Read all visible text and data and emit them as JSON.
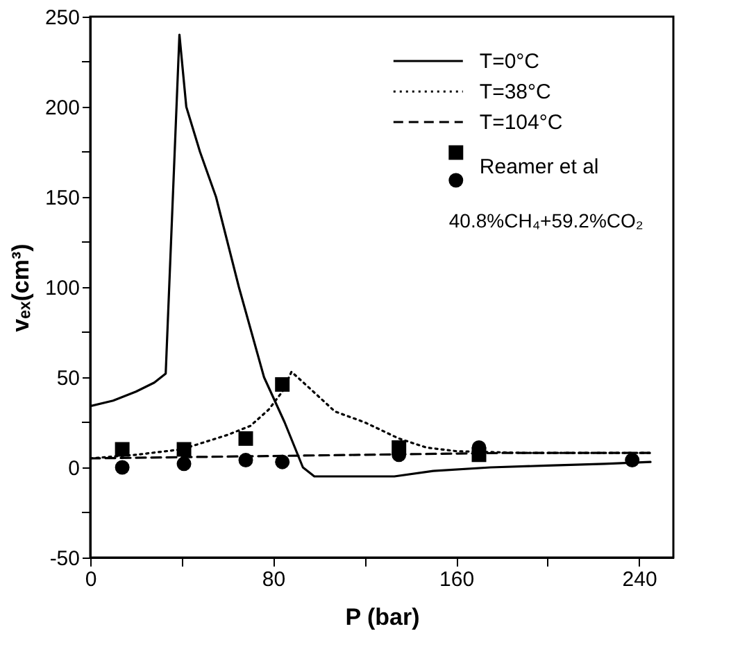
{
  "chart_data": {
    "type": "line",
    "xlabel": "P (bar)",
    "ylabel": "vₑₓ(cm³)",
    "xlim": [
      0,
      255
    ],
    "ylim": [
      -50,
      250
    ],
    "xticks": [
      0,
      {
        "value": 40,
        "label": null
      },
      80,
      {
        "value": 120,
        "label": null
      },
      160,
      {
        "value": 200,
        "label": null
      },
      240
    ],
    "yticks": [
      -50,
      {
        "value": -25,
        "label": null
      },
      0,
      {
        "value": 25,
        "label": null
      },
      50,
      {
        "value": 75,
        "label": null
      },
      100,
      {
        "value": 125,
        "label": null
      },
      150,
      {
        "value": 175,
        "label": null
      },
      200,
      {
        "value": 225,
        "label": null
      },
      250
    ],
    "grid": false,
    "legend": "top right",
    "annotations": [
      "40.8%CH₄+59.2%CO₂"
    ],
    "series": [
      {
        "name": "T=0°C",
        "line_style": "solid",
        "marker": "none",
        "color": "#000000",
        "x": [
          0,
          10,
          20,
          28,
          33,
          39,
          42,
          48,
          55,
          65,
          76,
          85,
          93,
          98,
          115,
          133,
          150,
          175,
          200,
          225,
          245
        ],
        "values": [
          34,
          37,
          42,
          47,
          52,
          240,
          200,
          175,
          150,
          100,
          50,
          25,
          0,
          -5,
          -5,
          -5,
          -2,
          0,
          1,
          2,
          3
        ]
      },
      {
        "name": "T=38°C",
        "line_style": "dotted",
        "marker": "none",
        "color": "#000000",
        "x": [
          0,
          20,
          40,
          60,
          70,
          78,
          84,
          88,
          95,
          107,
          120,
          135,
          147,
          160,
          190,
          220,
          245
        ],
        "values": [
          5,
          7,
          10,
          18,
          23,
          32,
          42,
          53,
          45,
          31,
          25,
          16,
          11,
          9,
          8,
          8,
          8
        ]
      },
      {
        "name": "T=104°C",
        "line_style": "dashed",
        "marker": "none",
        "color": "#000000",
        "x": [
          0,
          60,
          120,
          180,
          245
        ],
        "values": [
          5,
          6,
          7,
          8,
          8
        ]
      },
      {
        "name": "Reamer et al",
        "type": "scatter",
        "marker": "square",
        "color": "#000000",
        "x": [
          14,
          41,
          68,
          84,
          135,
          170
        ],
        "values": [
          10,
          10,
          16,
          46,
          11,
          7
        ]
      },
      {
        "type": "scatter",
        "marker": "circle",
        "color": "#000000",
        "x": [
          14,
          41,
          68,
          84,
          135,
          170,
          237
        ],
        "values": [
          0,
          2,
          4,
          3,
          7,
          11,
          4
        ]
      }
    ]
  }
}
